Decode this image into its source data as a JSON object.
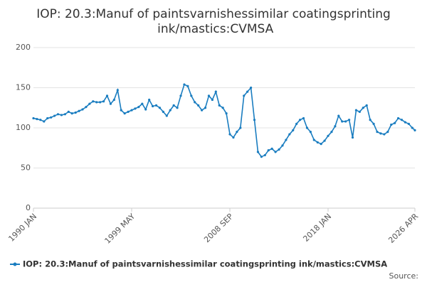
{
  "chart_data": {
    "type": "line",
    "title": "IOP: 20.3:Manuf of paintsvarnishessimilar coatingsprinting ink/mastics:CVMSA",
    "source": "Source:",
    "x": [
      "1990-01",
      "1990-05",
      "1990-09",
      "1991-01",
      "1991-05",
      "1991-09",
      "1992-01",
      "1992-05",
      "1992-09",
      "1993-01",
      "1993-05",
      "1993-09",
      "1994-01",
      "1994-05",
      "1994-09",
      "1995-01",
      "1995-05",
      "1995-09",
      "1996-01",
      "1996-05",
      "1996-09",
      "1997-01",
      "1997-05",
      "1997-09",
      "1998-01",
      "1998-05",
      "1998-09",
      "1999-01",
      "1999-05",
      "1999-09",
      "2000-01",
      "2000-05",
      "2000-09",
      "2001-01",
      "2001-05",
      "2001-09",
      "2002-01",
      "2002-05",
      "2002-09",
      "2003-01",
      "2003-05",
      "2003-09",
      "2004-01",
      "2004-05",
      "2004-09",
      "2005-01",
      "2005-05",
      "2005-09",
      "2006-01",
      "2006-05",
      "2006-09",
      "2007-01",
      "2007-05",
      "2007-09",
      "2008-01",
      "2008-05",
      "2008-09",
      "2009-01",
      "2009-05",
      "2009-09",
      "2010-01",
      "2010-05",
      "2010-09",
      "2011-01",
      "2011-05",
      "2011-09",
      "2012-01",
      "2012-05",
      "2012-09",
      "2013-01",
      "2013-05",
      "2013-09",
      "2014-01",
      "2014-05",
      "2014-09",
      "2015-01",
      "2015-05",
      "2015-09",
      "2016-01",
      "2016-05",
      "2016-09",
      "2017-01",
      "2017-05",
      "2017-09",
      "2018-01",
      "2018-05",
      "2018-09",
      "2019-01",
      "2019-05",
      "2019-09",
      "2020-01",
      "2020-05",
      "2020-09",
      "2021-01",
      "2021-05",
      "2021-09",
      "2022-01",
      "2022-05",
      "2022-09",
      "2023-01",
      "2023-05",
      "2023-09",
      "2024-01",
      "2024-05",
      "2024-09",
      "2025-01",
      "2025-05",
      "2025-09",
      "2026-01",
      "2026-04"
    ],
    "series": [
      {
        "name": "IOP: 20.3:Manuf of paintsvarnishessimilar coatingsprinting ink/mastics:CVMSA",
        "color": "#1a7dc0",
        "values": [
          112,
          111,
          110,
          108,
          112,
          113,
          115,
          117,
          116,
          117,
          120,
          118,
          119,
          121,
          123,
          126,
          130,
          133,
          132,
          132,
          133,
          140,
          130,
          135,
          147,
          122,
          118,
          120,
          122,
          124,
          126,
          130,
          123,
          135,
          127,
          128,
          125,
          120,
          115,
          122,
          128,
          125,
          140,
          154,
          152,
          140,
          132,
          128,
          122,
          125,
          140,
          135,
          145,
          128,
          125,
          118,
          92,
          88,
          95,
          100,
          140,
          145,
          150,
          110,
          70,
          64,
          66,
          72,
          74,
          70,
          73,
          78,
          85,
          92,
          97,
          105,
          110,
          112,
          100,
          95,
          85,
          82,
          80,
          84,
          90,
          95,
          102,
          115,
          108,
          108,
          110,
          88,
          122,
          120,
          125,
          128,
          110,
          105,
          95,
          93,
          92,
          95,
          104,
          106,
          112,
          110,
          107,
          105,
          100,
          97
        ]
      }
    ],
    "xlim": [
      "1990-01",
      "2026-04"
    ],
    "xticks": [
      {
        "value": "1990-01",
        "label": "1990 JAN"
      },
      {
        "value": "1999-05",
        "label": "1999 MAY"
      },
      {
        "value": "2008-09",
        "label": "2008 SEP"
      },
      {
        "value": "2018-01",
        "label": "2018 JAN"
      },
      {
        "value": "2026-04",
        "label": "2026 APR"
      }
    ],
    "ylim": [
      0,
      200
    ],
    "yticks": [
      0,
      50,
      100,
      150,
      200
    ],
    "grid": true
  }
}
